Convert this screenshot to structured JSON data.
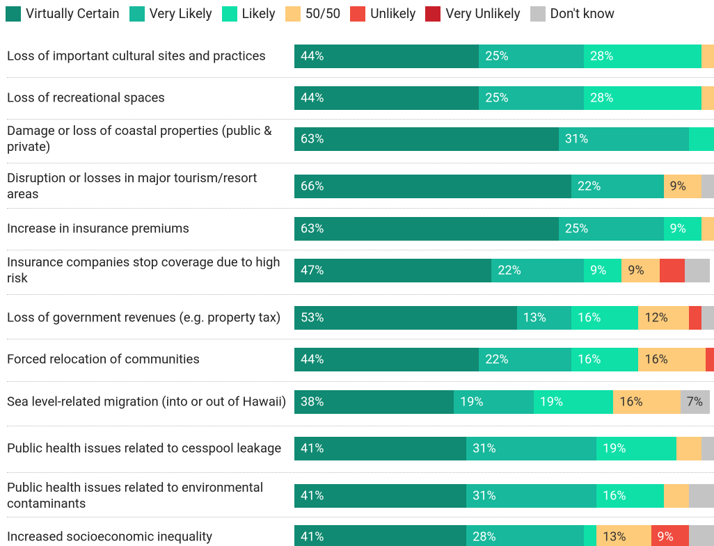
{
  "chart_data": {
    "type": "stacked-bar-horizontal",
    "categories": [
      "Loss of important cultural sites and practices",
      "Loss of recreational spaces",
      "Damage or loss of coastal properties (public & private)",
      "Disruption or losses in major tourism/resort areas",
      "Increase in insurance premiums",
      "Insurance companies stop coverage due to high risk",
      "Loss of government revenues (e.g. property tax)",
      "Forced relocation of communities",
      "Sea level-related migration (into or out of Hawaii)",
      "Public health issues related to cesspool leakage",
      "Public health issues related to environmental contaminants",
      "Increased socioeconomic inequality"
    ],
    "xlim": [
      0,
      100
    ],
    "series": [
      {
        "name": "Virtually Certain",
        "color": "#108a72",
        "values": [
          44,
          44,
          63,
          66,
          63,
          47,
          53,
          44,
          38,
          41,
          41,
          41
        ],
        "value_labels": [
          "44%",
          "44%",
          "63%",
          "66%",
          "63%",
          "47%",
          "53%",
          "44%",
          "38%",
          "41%",
          "41%",
          "41%"
        ]
      },
      {
        "name": "Very Likely",
        "color": "#17b89b",
        "values": [
          25,
          25,
          31,
          22,
          25,
          22,
          13,
          22,
          19,
          31,
          31,
          28
        ],
        "value_labels": [
          "25%",
          "25%",
          "31%",
          "22%",
          "25%",
          "22%",
          "13%",
          "22%",
          "19%",
          "31%",
          "31%",
          "28%"
        ]
      },
      {
        "name": "Likely",
        "color": "#0ee0a8",
        "values": [
          28,
          28,
          6,
          0,
          9,
          9,
          16,
          16,
          19,
          19,
          16,
          3
        ],
        "value_labels": [
          "28%",
          "28%",
          null,
          null,
          "9%",
          "9%",
          "16%",
          "16%",
          "19%",
          "19%",
          "16%",
          null
        ]
      },
      {
        "name": "50/50",
        "color": "#fecb7a",
        "values": [
          3,
          3,
          0,
          9,
          3,
          9,
          12,
          16,
          16,
          6,
          6,
          13
        ],
        "value_labels": [
          null,
          null,
          null,
          "9%",
          null,
          "9%",
          "12%",
          "16%",
          "16%",
          null,
          null,
          "13%"
        ]
      },
      {
        "name": "Unlikely",
        "color": "#ef4b3e",
        "values": [
          0,
          0,
          0,
          0,
          0,
          6,
          3,
          2,
          0,
          0,
          0,
          9
        ],
        "value_labels": [
          null,
          null,
          null,
          null,
          null,
          null,
          null,
          null,
          null,
          null,
          null,
          "9%"
        ]
      },
      {
        "name": "Very Unlikely",
        "color": "#c8202a",
        "values": [
          0,
          0,
          0,
          0,
          0,
          0,
          0,
          0,
          0,
          0,
          0,
          0
        ],
        "value_labels": [
          null,
          null,
          null,
          null,
          null,
          null,
          null,
          null,
          null,
          null,
          null,
          null
        ]
      },
      {
        "name": "Don't know",
        "color": "#c4c4c4",
        "values": [
          0,
          0,
          0,
          3,
          0,
          6,
          3,
          0,
          7,
          3,
          6,
          6
        ],
        "value_labels": [
          null,
          null,
          null,
          null,
          null,
          null,
          null,
          null,
          "7%",
          null,
          null,
          null
        ]
      }
    ]
  }
}
